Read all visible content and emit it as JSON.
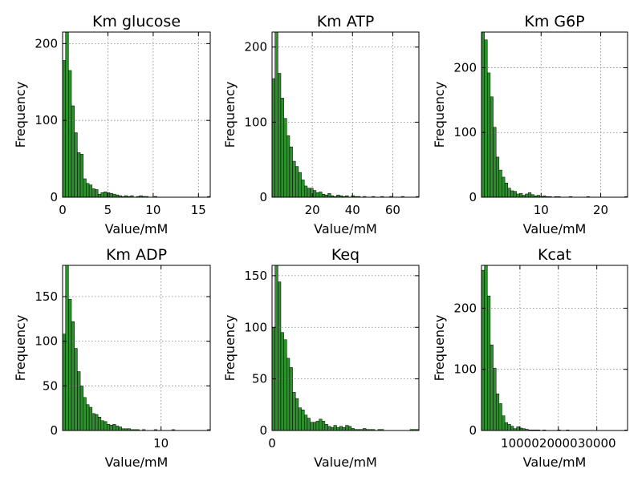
{
  "figure": {
    "background": "#ffffff"
  },
  "style": {
    "bar_fill": "#2f8f2f",
    "bar_edge": "#000000",
    "grid_color": "#808080"
  },
  "chart_data": [
    {
      "type": "bar",
      "title": "Km glucose",
      "xlabel": "Value/mM",
      "ylabel": "Frequency",
      "xlim": [
        0,
        16.3
      ],
      "ylim": [
        0,
        215
      ],
      "xticks": [
        0,
        5,
        10,
        15
      ],
      "yticks": [
        0,
        100,
        200
      ],
      "grid": true,
      "bin_start": 0,
      "bin_width": 0.326,
      "values": [
        178,
        215,
        165,
        119,
        84,
        58,
        56,
        24,
        18,
        16,
        11,
        10,
        4,
        6,
        7,
        6,
        5,
        4,
        3,
        2,
        1,
        2,
        1,
        2,
        0,
        1,
        2,
        1,
        1,
        0,
        0,
        1,
        0,
        0,
        0,
        0,
        0,
        0,
        0,
        0,
        0,
        0,
        0,
        0,
        0,
        0,
        0,
        0,
        0,
        1
      ]
    },
    {
      "type": "bar",
      "title": "Km ATP",
      "xlabel": "Value/mM",
      "ylabel": "Frequency",
      "xlim": [
        0,
        73
      ],
      "ylim": [
        0,
        220
      ],
      "xticks": [
        20,
        40,
        60
      ],
      "yticks": [
        0,
        100,
        200
      ],
      "grid": true,
      "bin_start": 0,
      "bin_width": 1.46,
      "values": [
        158,
        220,
        165,
        132,
        105,
        82,
        67,
        48,
        41,
        33,
        23,
        15,
        12,
        12,
        9,
        6,
        7,
        4,
        3,
        5,
        2,
        1,
        3,
        2,
        1,
        2,
        0,
        2,
        1,
        1,
        0,
        1,
        0,
        0,
        1,
        0,
        0,
        1,
        0,
        0,
        1,
        0,
        0,
        0,
        1,
        0,
        0,
        0,
        0,
        1
      ]
    },
    {
      "type": "bar",
      "title": "Km G6P",
      "xlabel": "Value/mM",
      "ylabel": "Frequency",
      "xlim": [
        0,
        24.5
      ],
      "ylim": [
        0,
        255
      ],
      "xticks": [
        10,
        20
      ],
      "yticks": [
        0,
        100,
        200
      ],
      "grid": true,
      "bin_start": 0,
      "bin_width": 0.49,
      "values": [
        255,
        243,
        192,
        155,
        108,
        62,
        42,
        31,
        22,
        14,
        10,
        9,
        5,
        6,
        3,
        5,
        7,
        4,
        2,
        3,
        1,
        2,
        1,
        1,
        0,
        1,
        1,
        0,
        0,
        0,
        1,
        0,
        0,
        0,
        0,
        0,
        1,
        0,
        0,
        0,
        0,
        0,
        0,
        0,
        0,
        0,
        0,
        0,
        0,
        1
      ]
    },
    {
      "type": "bar",
      "title": "Km ADP",
      "xlabel": "Value/mM",
      "ylabel": "Frequency",
      "xlim": [
        0,
        15
      ],
      "ylim": [
        0,
        185
      ],
      "xticks": [
        10
      ],
      "yticks": [
        0,
        50,
        100,
        150
      ],
      "grid": true,
      "bin_start": 0,
      "bin_width": 0.3,
      "values": [
        108,
        185,
        147,
        122,
        92,
        66,
        50,
        37,
        29,
        26,
        19,
        18,
        15,
        11,
        10,
        7,
        6,
        7,
        5,
        4,
        2,
        2,
        2,
        1,
        1,
        1,
        0,
        1,
        0,
        0,
        0,
        1,
        0,
        0,
        0,
        0,
        0,
        1,
        0,
        0,
        0,
        0,
        0,
        0,
        0,
        0,
        0,
        0,
        0,
        1
      ]
    },
    {
      "type": "bar",
      "title": "Keq",
      "xlabel": "Value/mM",
      "ylabel": "Frequency",
      "xlim": [
        0,
        27
      ],
      "ylim": [
        0,
        160
      ],
      "xticks": [
        0
      ],
      "yticks": [
        0,
        50,
        100,
        150
      ],
      "grid": true,
      "bin_start": 0,
      "bin_width": 0.54,
      "values": [
        100,
        160,
        144,
        95,
        88,
        70,
        61,
        37,
        31,
        22,
        20,
        15,
        12,
        8,
        8,
        9,
        11,
        9,
        6,
        4,
        3,
        5,
        3,
        4,
        3,
        5,
        4,
        2,
        1,
        1,
        1,
        2,
        1,
        1,
        1,
        0,
        1,
        1,
        0,
        0,
        0,
        0,
        0,
        0,
        0,
        0,
        0,
        1,
        1,
        1
      ]
    },
    {
      "type": "bar",
      "title": "Kcat",
      "xlabel": "Value/mM",
      "ylabel": "Frequency",
      "xlim": [
        0,
        38000
      ],
      "ylim": [
        0,
        270
      ],
      "xticks": [
        10000,
        20000,
        30000
      ],
      "yticks": [
        0,
        100,
        200
      ],
      "grid": true,
      "bin_start": 0,
      "bin_width": 760,
      "values": [
        262,
        270,
        220,
        140,
        102,
        60,
        44,
        24,
        13,
        10,
        7,
        3,
        6,
        4,
        3,
        2,
        1,
        1,
        1,
        1,
        0,
        1,
        0,
        0,
        0,
        0,
        1,
        0,
        0,
        1,
        0,
        0,
        0,
        0,
        0,
        0,
        0,
        0,
        0,
        0,
        0,
        0,
        0,
        0,
        0,
        0,
        0,
        0,
        0,
        1
      ]
    }
  ]
}
